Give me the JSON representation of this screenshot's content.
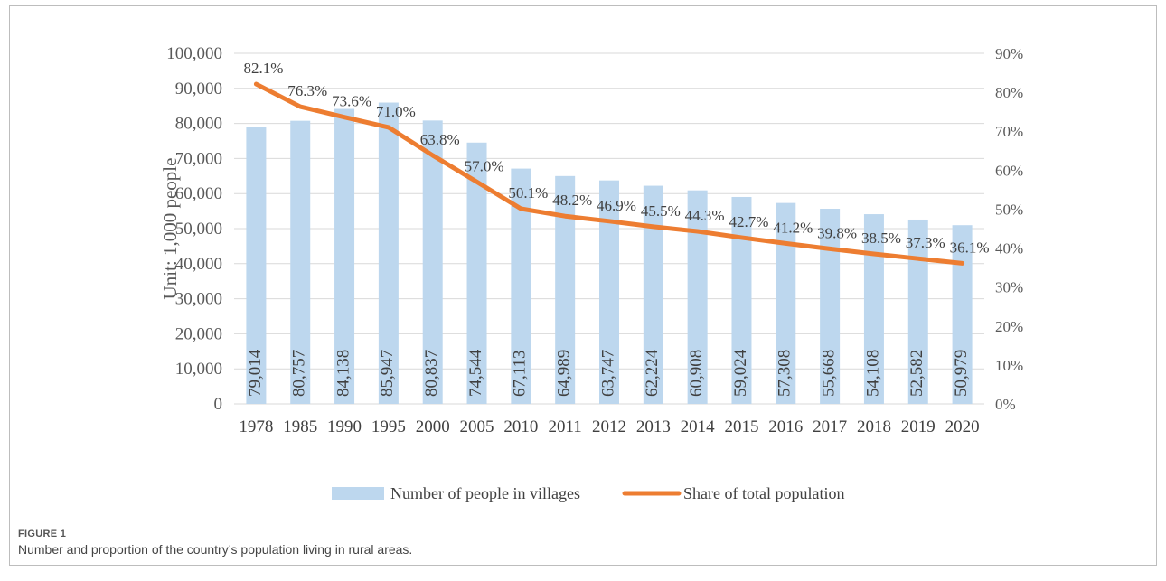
{
  "caption": {
    "label": "FIGURE 1",
    "text": "Number and proportion of the country’s population living in rural areas."
  },
  "chart_data": {
    "type": "bar",
    "categories": [
      "1978",
      "1985",
      "1990",
      "1995",
      "2000",
      "2005",
      "2010",
      "2011",
      "2012",
      "2013",
      "2014",
      "2015",
      "2016",
      "2017",
      "2018",
      "2019",
      "2020"
    ],
    "series": [
      {
        "name": "Number of people in villages",
        "type": "bar",
        "axis": "left",
        "color": "#bdd7ee",
        "values": [
          79014,
          80757,
          84138,
          85947,
          80837,
          74544,
          67113,
          64989,
          63747,
          62224,
          60908,
          59024,
          57308,
          55668,
          54108,
          52582,
          50979
        ],
        "labels": [
          "79,014",
          "80,757",
          "84,138",
          "85,947",
          "80,837",
          "74,544",
          "67,113",
          "64,989",
          "63,747",
          "62,224",
          "60,908",
          "59,024",
          "57,308",
          "55,668",
          "54,108",
          "52,582",
          "50,979"
        ]
      },
      {
        "name": "Share of total population",
        "type": "line",
        "axis": "right",
        "color": "#ed7d31",
        "values": [
          82.1,
          76.3,
          73.6,
          71.0,
          63.8,
          57.0,
          50.1,
          48.2,
          46.9,
          45.5,
          44.3,
          42.7,
          41.2,
          39.8,
          38.5,
          37.3,
          36.1
        ],
        "labels": [
          "82.1%",
          "76.3%",
          "73.6%",
          "71.0%",
          "63.8%",
          "57.0%",
          "50.1%",
          "48.2%",
          "46.9%",
          "45.5%",
          "44.3%",
          "42.7%",
          "41.2%",
          "39.8%",
          "38.5%",
          "37.3%",
          "36.1%"
        ]
      }
    ],
    "ylabel": "Unit: 1,000 people",
    "ylim": [
      0,
      100000
    ],
    "y_ticks": [
      "0",
      "10,000",
      "20,000",
      "30,000",
      "40,000",
      "50,000",
      "60,000",
      "70,000",
      "80,000",
      "90,000",
      "100,000"
    ],
    "y2lim": [
      0,
      90
    ],
    "y2_ticks": [
      "0%",
      "10%",
      "20%",
      "30%",
      "40%",
      "50%",
      "60%",
      "70%",
      "80%",
      "90%"
    ],
    "grid": true,
    "legend_position": "bottom"
  }
}
